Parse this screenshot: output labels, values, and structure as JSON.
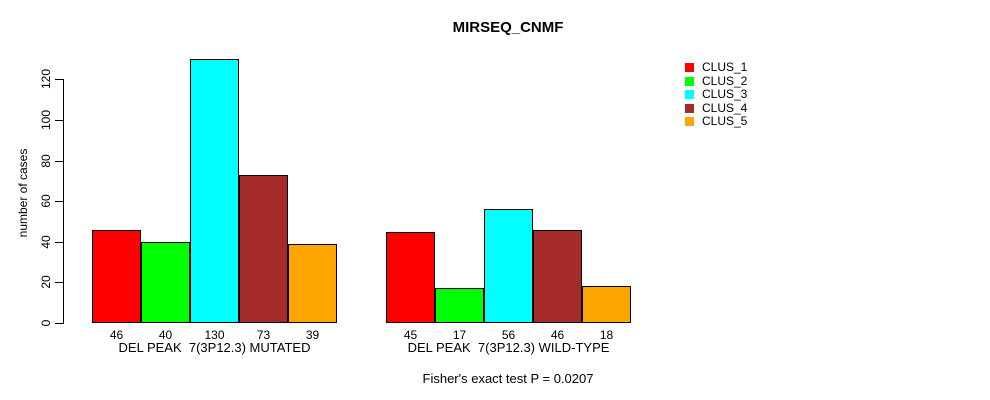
{
  "title": "MIRSEQ_CNMF",
  "y_axis": {
    "label": "number of cases",
    "ticks": [
      0,
      20,
      40,
      60,
      80,
      100,
      120
    ]
  },
  "annotation": "Fisher's exact test P = 0.0207",
  "legend": {
    "items": [
      {
        "label": "CLUS_1",
        "color": "#FF0000"
      },
      {
        "label": "CLUS_2",
        "color": "#00FF00"
      },
      {
        "label": "CLUS_3",
        "color": "#00FFFF"
      },
      {
        "label": "CLUS_4",
        "color": "#A52A2A"
      },
      {
        "label": "CLUS_5",
        "color": "#FFA500"
      }
    ]
  },
  "chart_data": {
    "type": "bar",
    "title": "MIRSEQ_CNMF",
    "xlabel": "",
    "ylabel": "number of cases",
    "ylim": [
      0,
      130
    ],
    "yticks": [
      0,
      20,
      40,
      60,
      80,
      100,
      120
    ],
    "grid": false,
    "legend_position": "right",
    "bar_border_color": "#000000",
    "categories": [
      "DEL PEAK  7(3P12.3) MUTATED",
      "DEL PEAK  7(3P12.3) WILD-TYPE"
    ],
    "series": [
      {
        "name": "CLUS_1",
        "color": "#FF0000",
        "values": [
          46,
          45
        ]
      },
      {
        "name": "CLUS_2",
        "color": "#00FF00",
        "values": [
          40,
          17
        ]
      },
      {
        "name": "CLUS_3",
        "color": "#00FFFF",
        "values": [
          130,
          56
        ]
      },
      {
        "name": "CLUS_4",
        "color": "#A52A2A",
        "values": [
          73,
          46
        ]
      },
      {
        "name": "CLUS_5",
        "color": "#FFA500",
        "values": [
          39,
          18
        ]
      }
    ],
    "bar_value_labels": true,
    "annotation": "Fisher's exact test P = 0.0207"
  }
}
